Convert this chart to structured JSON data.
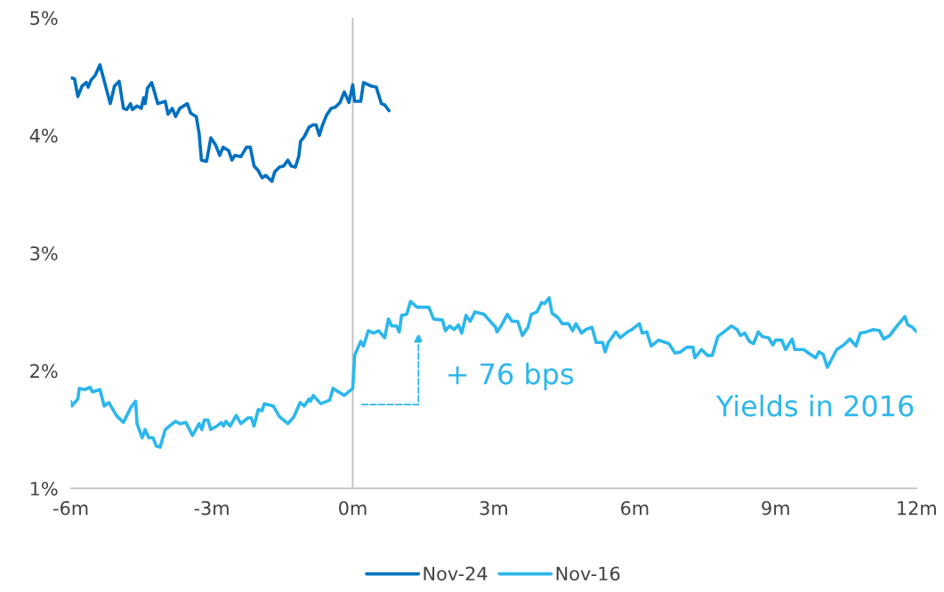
{
  "chart_data": {
    "type": "line",
    "xlim": [
      -6,
      12
    ],
    "ylim": [
      1,
      5
    ],
    "xticks": [
      {
        "value": -6,
        "label": "-6m"
      },
      {
        "value": -3,
        "label": "-3m"
      },
      {
        "value": 0,
        "label": "0m"
      },
      {
        "value": 3,
        "label": "3m"
      },
      {
        "value": 6,
        "label": "6m"
      },
      {
        "value": 9,
        "label": "9m"
      },
      {
        "value": 12,
        "label": "12m"
      }
    ],
    "yticks": [
      {
        "value": 1,
        "label": "1%"
      },
      {
        "value": 2,
        "label": "2%"
      },
      {
        "value": 3,
        "label": "3%"
      },
      {
        "value": 4,
        "label": "4%"
      },
      {
        "value": 5,
        "label": "5%"
      }
    ],
    "grid": false,
    "legend": "bottom",
    "marker": "none",
    "line_style": "solid",
    "ref_lines": [
      {
        "axis": "x",
        "value": 0,
        "color": "#bfbfbf"
      }
    ],
    "annotations": [
      "+ 76 bps",
      "Yields in 2016"
    ],
    "series": [
      {
        "name": "Nov-24",
        "color": "#0070c0",
        "x": [
          -6.0,
          -5.92,
          -5.85,
          -5.76,
          -5.67,
          -5.63,
          -5.57,
          -5.48,
          -5.38,
          -5.32,
          -5.16,
          -5.07,
          -4.97,
          -4.88,
          -4.81,
          -4.73,
          -4.69,
          -4.59,
          -4.5,
          -4.45,
          -4.42,
          -4.37,
          -4.28,
          -4.22,
          -4.15,
          -3.99,
          -3.93,
          -3.84,
          -3.77,
          -3.68,
          -3.52,
          -3.45,
          -3.33,
          -3.27,
          -3.22,
          -3.11,
          -3.02,
          -2.92,
          -2.83,
          -2.76,
          -2.64,
          -2.57,
          -2.51,
          -2.38,
          -2.26,
          -2.18,
          -2.1,
          -2.01,
          -1.93,
          -1.85,
          -1.72,
          -1.66,
          -1.56,
          -1.47,
          -1.38,
          -1.31,
          -1.22,
          -1.15,
          -1.11,
          -1.03,
          -0.93,
          -0.84,
          -0.78,
          -0.71,
          -0.65,
          -0.56,
          -0.46,
          -0.37,
          -0.27,
          -0.18,
          -0.08,
          0.0,
          0.04,
          0.17,
          0.23,
          0.39,
          0.5,
          0.61,
          0.68,
          0.77
        ],
        "values": [
          4.49,
          4.48,
          4.33,
          4.42,
          4.45,
          4.41,
          4.47,
          4.51,
          4.6,
          4.51,
          4.27,
          4.42,
          4.46,
          4.23,
          4.22,
          4.27,
          4.22,
          4.25,
          4.23,
          4.32,
          4.27,
          4.4,
          4.45,
          4.37,
          4.27,
          4.29,
          4.18,
          4.23,
          4.16,
          4.23,
          4.27,
          4.19,
          4.16,
          4.02,
          3.79,
          3.78,
          3.98,
          3.92,
          3.83,
          3.9,
          3.87,
          3.79,
          3.83,
          3.82,
          3.9,
          3.9,
          3.74,
          3.7,
          3.64,
          3.66,
          3.61,
          3.69,
          3.73,
          3.74,
          3.79,
          3.74,
          3.73,
          3.82,
          3.95,
          3.99,
          4.07,
          4.09,
          4.09,
          4.0,
          4.08,
          4.17,
          4.23,
          4.24,
          4.28,
          4.37,
          4.28,
          4.43,
          4.29,
          4.29,
          4.45,
          4.42,
          4.41,
          4.27,
          4.26,
          4.21
        ]
      },
      {
        "name": "Nov-16",
        "color": "#2cb7ec",
        "x": [
          -6.0,
          -5.98,
          -5.85,
          -5.82,
          -5.7,
          -5.59,
          -5.54,
          -5.38,
          -5.29,
          -5.19,
          -5.03,
          -4.88,
          -4.72,
          -4.62,
          -4.59,
          -4.48,
          -4.42,
          -4.34,
          -4.25,
          -4.18,
          -4.1,
          -3.99,
          -3.9,
          -3.77,
          -3.68,
          -3.55,
          -3.41,
          -3.27,
          -3.21,
          -3.16,
          -3.08,
          -3.02,
          -2.89,
          -2.8,
          -2.75,
          -2.7,
          -2.61,
          -2.48,
          -2.38,
          -2.23,
          -2.16,
          -2.1,
          -2.01,
          -1.93,
          -1.88,
          -1.69,
          -1.56,
          -1.38,
          -1.25,
          -1.12,
          -1.03,
          -0.93,
          -0.9,
          -0.84,
          -0.68,
          -0.49,
          -0.42,
          -0.18,
          0.0,
          0.04,
          0.17,
          0.23,
          0.33,
          0.45,
          0.55,
          0.68,
          0.76,
          0.83,
          0.93,
          0.99,
          1.04,
          1.15,
          1.23,
          1.37,
          1.62,
          1.72,
          1.91,
          1.97,
          2.06,
          2.16,
          2.25,
          2.32,
          2.41,
          2.5,
          2.6,
          2.79,
          3.04,
          3.07,
          3.17,
          3.29,
          3.39,
          3.51,
          3.61,
          3.73,
          3.8,
          3.92,
          4.02,
          4.08,
          4.18,
          4.24,
          4.37,
          4.46,
          4.59,
          4.68,
          4.75,
          4.87,
          4.96,
          5.09,
          5.18,
          5.32,
          5.37,
          5.44,
          5.6,
          5.69,
          5.85,
          5.94,
          6.1,
          6.16,
          6.26,
          6.35,
          6.51,
          6.73,
          6.86,
          6.98,
          7.11,
          7.24,
          7.28,
          7.42,
          7.55,
          7.65,
          7.77,
          7.93,
          8.06,
          8.18,
          8.25,
          8.34,
          8.44,
          8.53,
          8.63,
          8.72,
          8.85,
          8.94,
          9.0,
          9.13,
          9.21,
          9.35,
          9.41,
          9.6,
          9.7,
          9.85,
          9.92,
          10.01,
          10.1,
          10.3,
          10.45,
          10.58,
          10.71,
          10.8,
          10.93,
          11.08,
          11.21,
          11.3,
          11.43,
          11.56,
          11.75,
          11.81,
          11.91,
          12.0
        ],
        "values": [
          1.74,
          1.7,
          1.76,
          1.85,
          1.84,
          1.86,
          1.82,
          1.84,
          1.7,
          1.73,
          1.62,
          1.56,
          1.69,
          1.74,
          1.55,
          1.43,
          1.5,
          1.43,
          1.43,
          1.36,
          1.35,
          1.5,
          1.53,
          1.57,
          1.55,
          1.56,
          1.45,
          1.55,
          1.5,
          1.58,
          1.58,
          1.5,
          1.53,
          1.56,
          1.53,
          1.57,
          1.53,
          1.62,
          1.55,
          1.6,
          1.6,
          1.53,
          1.67,
          1.66,
          1.72,
          1.7,
          1.61,
          1.55,
          1.61,
          1.73,
          1.7,
          1.76,
          1.74,
          1.79,
          1.72,
          1.75,
          1.85,
          1.79,
          1.85,
          2.13,
          2.25,
          2.21,
          2.34,
          2.32,
          2.34,
          2.28,
          2.44,
          2.38,
          2.38,
          2.33,
          2.47,
          2.48,
          2.59,
          2.54,
          2.54,
          2.44,
          2.43,
          2.34,
          2.38,
          2.35,
          2.39,
          2.32,
          2.47,
          2.42,
          2.5,
          2.48,
          2.37,
          2.33,
          2.39,
          2.48,
          2.42,
          2.42,
          2.3,
          2.37,
          2.48,
          2.5,
          2.58,
          2.57,
          2.62,
          2.49,
          2.45,
          2.4,
          2.4,
          2.34,
          2.4,
          2.32,
          2.35,
          2.37,
          2.24,
          2.24,
          2.16,
          2.24,
          2.33,
          2.28,
          2.33,
          2.35,
          2.4,
          2.32,
          2.33,
          2.21,
          2.26,
          2.23,
          2.15,
          2.16,
          2.2,
          2.2,
          2.11,
          2.18,
          2.13,
          2.13,
          2.29,
          2.34,
          2.38,
          2.35,
          2.3,
          2.32,
          2.25,
          2.23,
          2.33,
          2.29,
          2.28,
          2.22,
          2.26,
          2.26,
          2.18,
          2.27,
          2.18,
          2.18,
          2.15,
          2.11,
          2.16,
          2.14,
          2.03,
          2.18,
          2.22,
          2.27,
          2.21,
          2.32,
          2.33,
          2.35,
          2.34,
          2.27,
          2.3,
          2.37,
          2.46,
          2.39,
          2.37,
          2.33
        ]
      }
    ]
  }
}
